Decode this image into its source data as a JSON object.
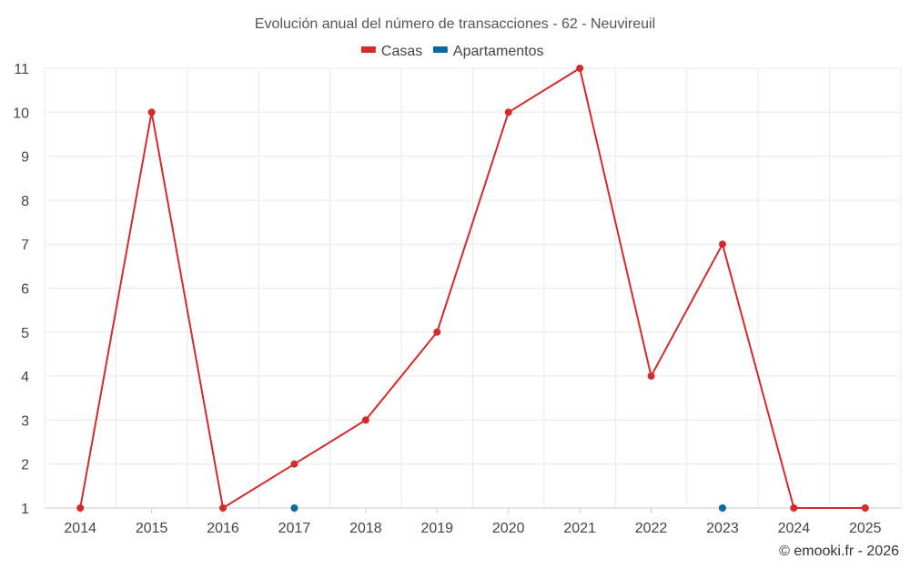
{
  "chart_data": {
    "type": "line",
    "title": "Evolución anual del número de transacciones - 62 - Neuvireuil",
    "categories": [
      "2014",
      "2015",
      "2016",
      "2017",
      "2018",
      "2019",
      "2020",
      "2021",
      "2022",
      "2023",
      "2024",
      "2025"
    ],
    "series": [
      {
        "name": "Casas",
        "color": "#d42a2a",
        "values": [
          1,
          10,
          1,
          2,
          3,
          5,
          10,
          11,
          4,
          7,
          1,
          1
        ]
      },
      {
        "name": "Apartamentos",
        "color": "#0a6aa1",
        "values": [
          null,
          null,
          null,
          1,
          null,
          null,
          null,
          null,
          null,
          1,
          null,
          null
        ]
      }
    ],
    "ylim": [
      1,
      11
    ],
    "yticks": [
      1,
      2,
      3,
      4,
      5,
      6,
      7,
      8,
      9,
      10,
      11
    ],
    "xlabel": "",
    "ylabel": "",
    "grid": true,
    "legend": "top-center"
  },
  "credit": "© emooki.fr - 2026"
}
